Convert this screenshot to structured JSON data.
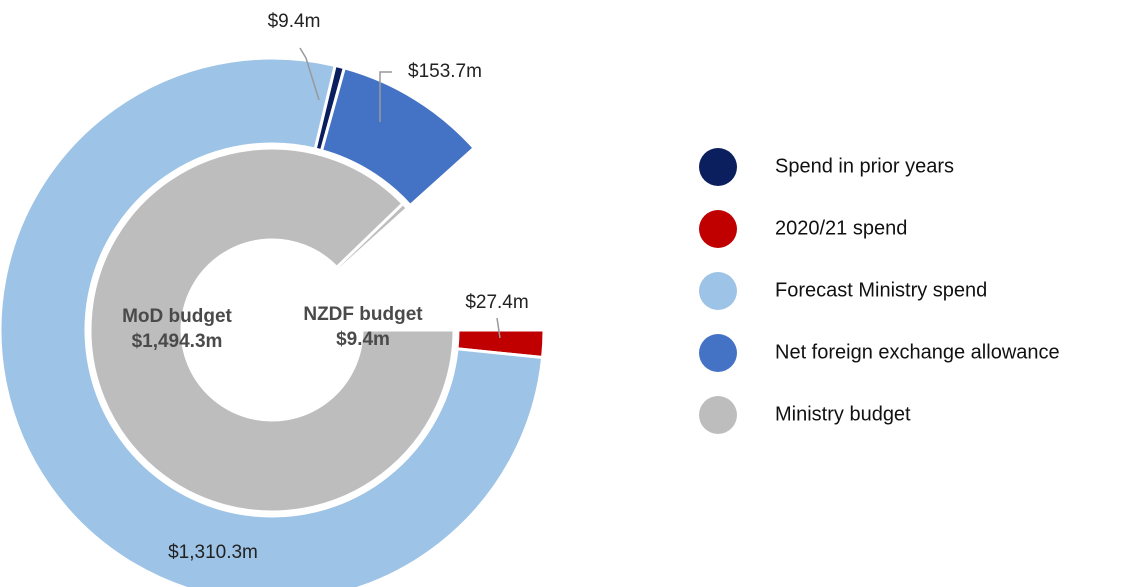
{
  "chart_data": {
    "type": "nested-donut",
    "legend": [
      {
        "name": "Spend in prior years",
        "color": "#0b1f5e"
      },
      {
        "name": "2020/21 spend",
        "color": "#c00000"
      },
      {
        "name": "Forecast Ministry spend",
        "color": "#9dc3e6"
      },
      {
        "name": "Net foreign exchange allowance",
        "color": "#4472c4"
      },
      {
        "name": "Ministry budget",
        "color": "#bdbdbd"
      }
    ],
    "outer": {
      "values": [
        27.4,
        1310.3,
        9.4,
        153.7
      ],
      "value_labels": [
        "$27.4m",
        "$1,310.3m",
        "$9.4m",
        "$153.7m"
      ],
      "colors": [
        "#c00000",
        "#9dc3e6",
        "#0b1f5e",
        "#4472c4"
      ]
    },
    "inner": {
      "labels": [
        "MoD budget",
        "NZDF budget"
      ],
      "values": [
        1494.3,
        9.4
      ],
      "value_labels": [
        "$1,494.3m",
        "$9.4m"
      ],
      "colors": [
        "#bdbdbd",
        "#bdbdbd"
      ]
    }
  }
}
